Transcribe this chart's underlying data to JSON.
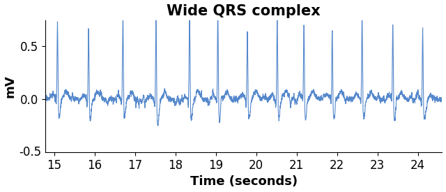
{
  "title": "Wide QRS complex",
  "xlabel": "Time (seconds)",
  "ylabel": "mV",
  "xlim": [
    14.78,
    24.6
  ],
  "ylim": [
    -0.5,
    0.75
  ],
  "xticks": [
    15,
    16,
    17,
    18,
    19,
    20,
    21,
    22,
    23,
    24
  ],
  "yticks": [
    0.0,
    0.5
  ],
  "ytick_extra_label": "-0.5",
  "ytick_extra_pos": -0.5,
  "line_color": "#5588cc",
  "linewidth": 0.8,
  "title_fontsize": 15,
  "title_fontweight": "bold",
  "label_fontsize": 13,
  "label_fontweight": "bold",
  "tick_fontsize": 12,
  "background_color": "#ffffff",
  "figsize": [
    6.4,
    2.75
  ],
  "dpi": 100,
  "beat_times": [
    15.08,
    15.85,
    16.7,
    17.52,
    18.35,
    19.05,
    19.78,
    20.52,
    21.18,
    21.88,
    22.62,
    23.38,
    24.12
  ],
  "seed": 17
}
